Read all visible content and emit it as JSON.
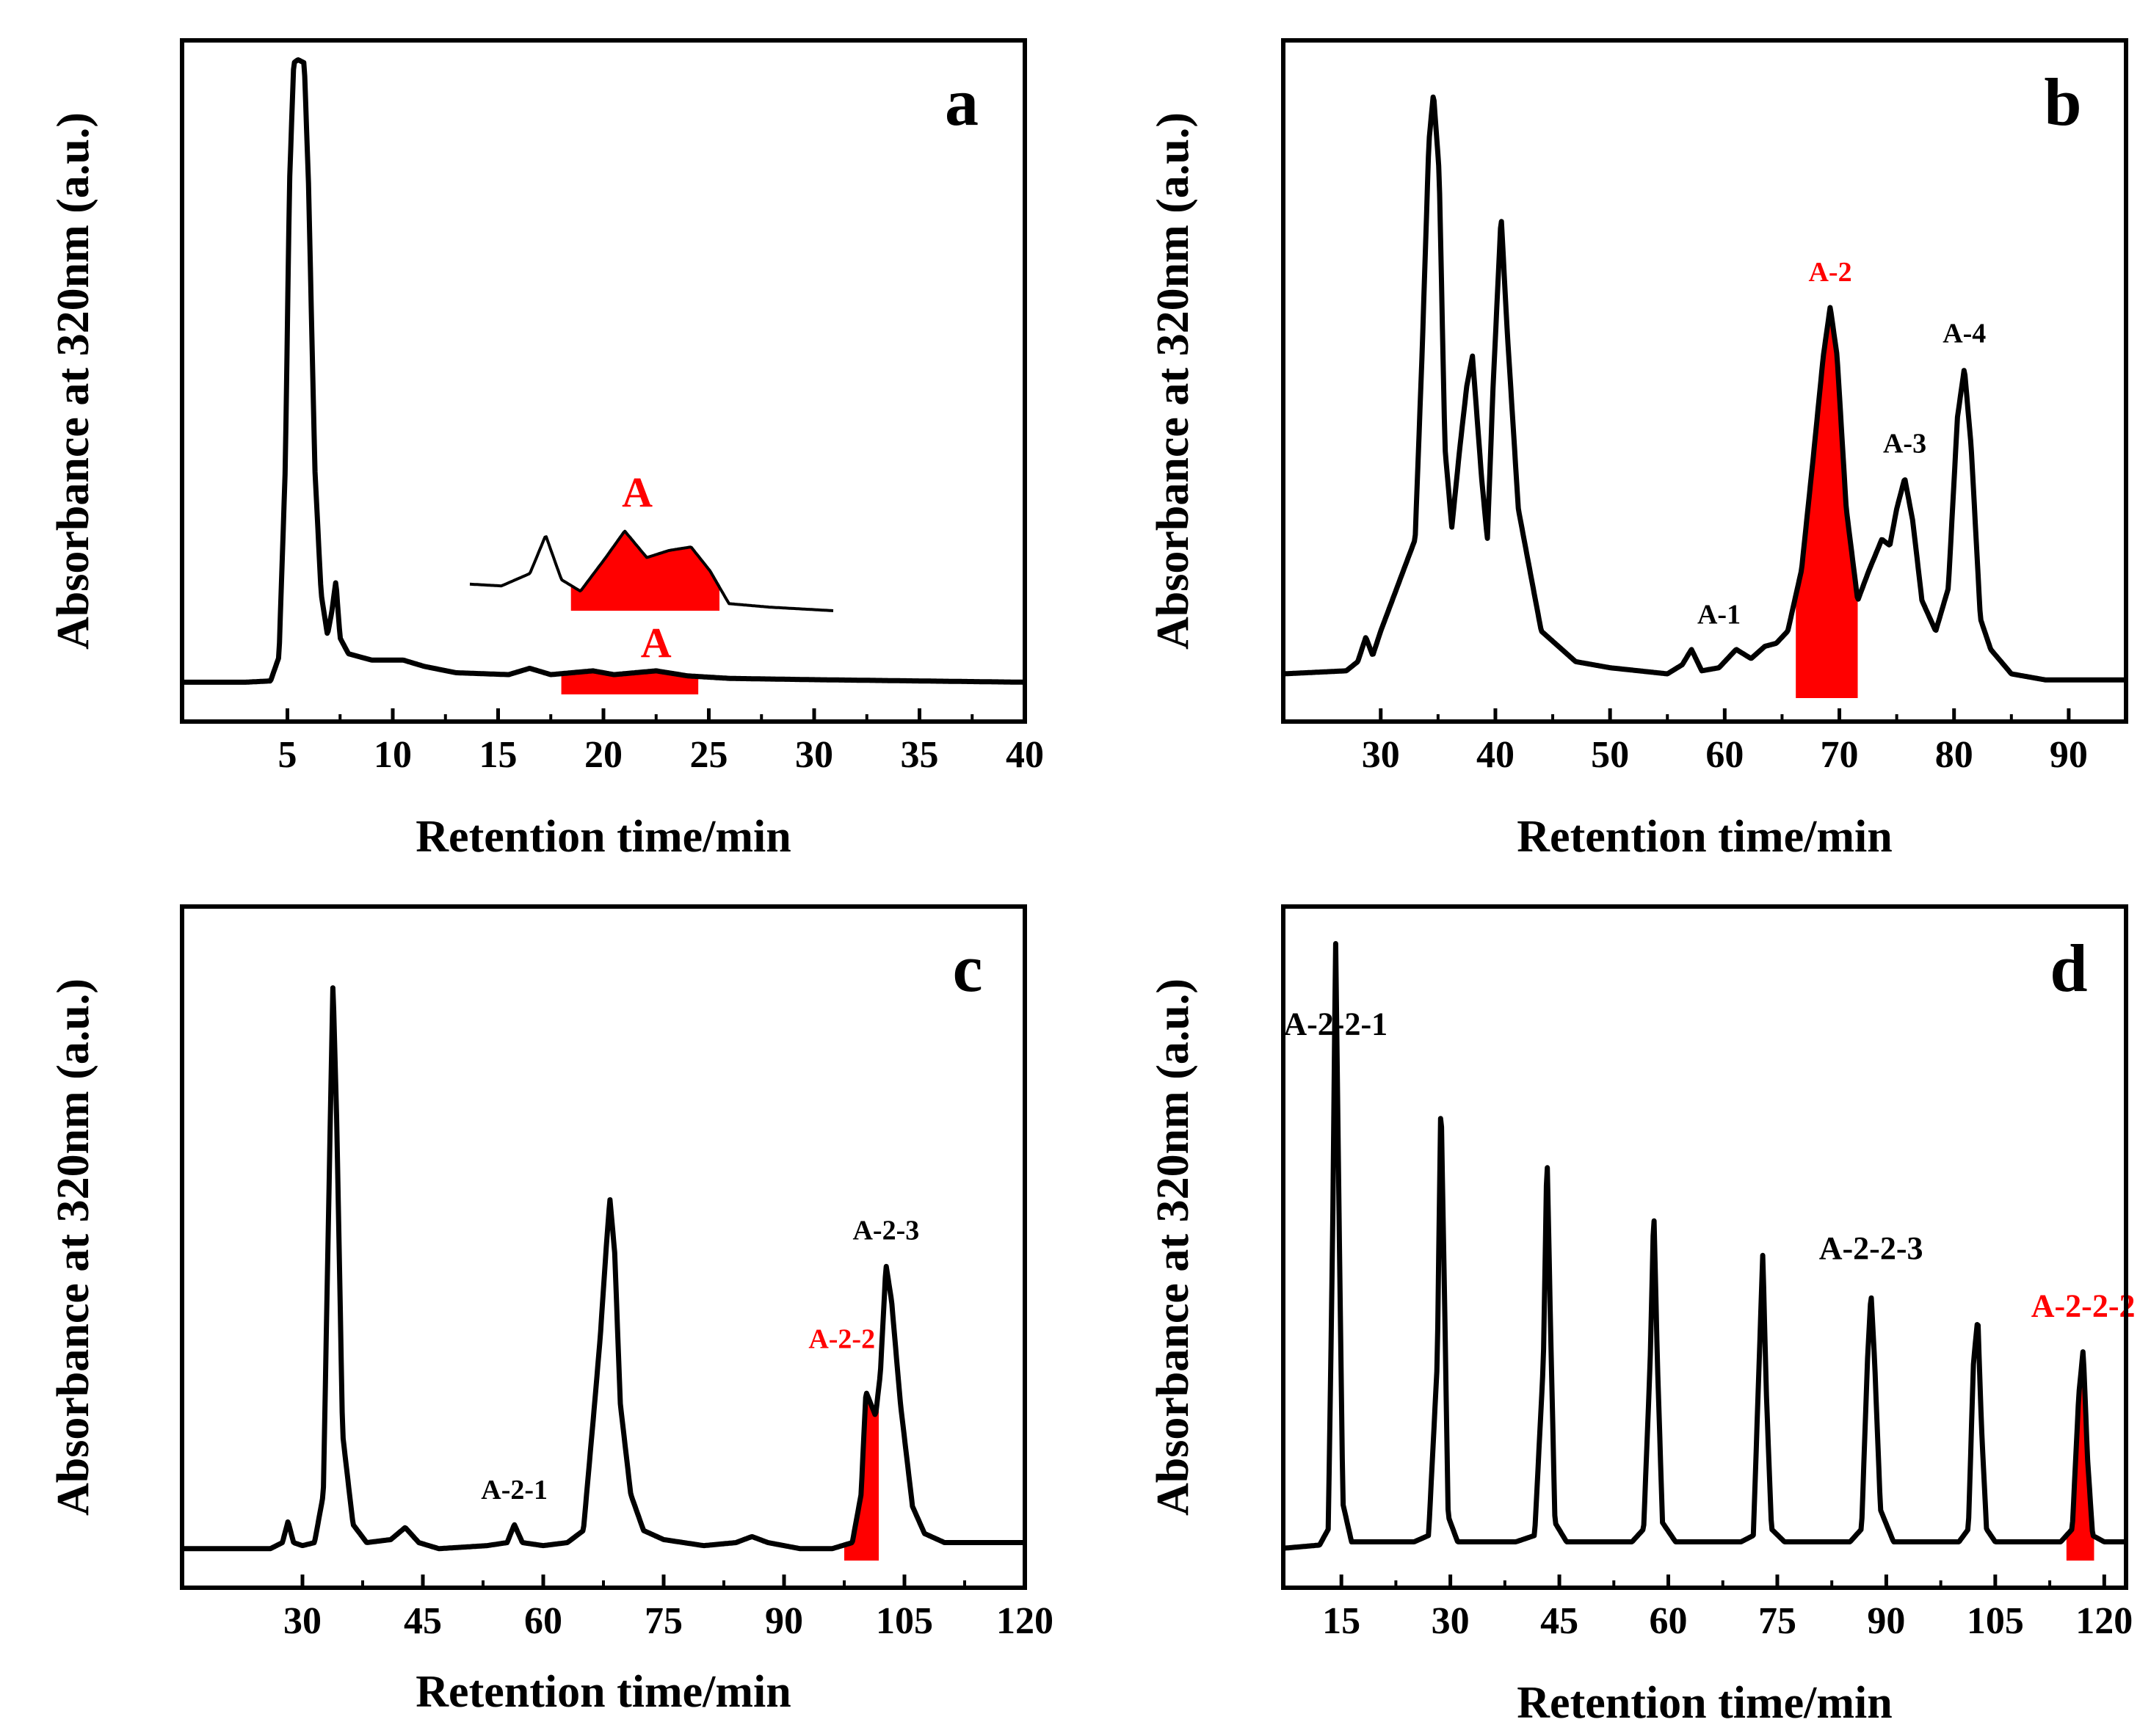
{
  "colors": {
    "trace": "#000000",
    "highlight": "#ff0000",
    "background": "#ffffff"
  },
  "chart_data": [
    {
      "type": "line",
      "panel": "a",
      "xlabel": "Retention time/min",
      "ylabel": "Absorbance at 320nm (a.u.)",
      "xlim": [
        0,
        40
      ],
      "ylim": [
        0,
        1.0
      ],
      "xticks": [
        5,
        10,
        15,
        20,
        25,
        30,
        35,
        40
      ],
      "trace": [
        [
          0,
          0.01
        ],
        [
          3,
          0.01
        ],
        [
          4.2,
          0.012
        ],
        [
          4.6,
          0.05
        ],
        [
          4.9,
          0.35
        ],
        [
          5.1,
          0.8
        ],
        [
          5.3,
          0.99
        ],
        [
          5.5,
          0.995
        ],
        [
          5.8,
          0.99
        ],
        [
          6.0,
          0.8
        ],
        [
          6.3,
          0.35
        ],
        [
          6.6,
          0.15
        ],
        [
          6.9,
          0.085
        ],
        [
          7.1,
          0.12
        ],
        [
          7.3,
          0.17
        ],
        [
          7.5,
          0.08
        ],
        [
          7.9,
          0.055
        ],
        [
          9,
          0.045
        ],
        [
          10.5,
          0.045
        ],
        [
          11.5,
          0.035
        ],
        [
          13,
          0.025
        ],
        [
          15.5,
          0.022
        ],
        [
          16.5,
          0.032
        ],
        [
          17.5,
          0.022
        ],
        [
          19.5,
          0.028
        ],
        [
          20.5,
          0.022
        ],
        [
          22.5,
          0.028
        ],
        [
          24,
          0.02
        ],
        [
          26,
          0.016
        ],
        [
          30,
          0.014
        ],
        [
          40,
          0.01
        ]
      ],
      "highlight_range": [
        18,
        24.5
      ],
      "highlight_label": "A",
      "inset": {
        "trace": [
          [
            0,
            0.3
          ],
          [
            1,
            0.28
          ],
          [
            1.9,
            0.42
          ],
          [
            2.4,
            0.85
          ],
          [
            2.9,
            0.35
          ],
          [
            3.5,
            0.22
          ],
          [
            4.3,
            0.6
          ],
          [
            4.9,
            0.9
          ],
          [
            5.6,
            0.6
          ],
          [
            6.3,
            0.68
          ],
          [
            7.0,
            0.72
          ],
          [
            7.6,
            0.45
          ],
          [
            8.2,
            0.08
          ],
          [
            9.5,
            0.04
          ],
          [
            11.5,
            0.0
          ]
        ],
        "highlight_range": [
          3.2,
          7.9
        ],
        "label": "A"
      }
    },
    {
      "type": "line",
      "panel": "b",
      "xlabel": "Retention time/min",
      "ylabel": "Absorbance at 320nm (a.u.)",
      "xlim": [
        21.5,
        95
      ],
      "ylim": [
        0,
        1.0
      ],
      "xticks": [
        30,
        40,
        50,
        60,
        70,
        80,
        90
      ],
      "trace": [
        [
          21.5,
          0.03
        ],
        [
          27,
          0.035
        ],
        [
          28,
          0.05
        ],
        [
          28.7,
          0.09
        ],
        [
          29.3,
          0.06
        ],
        [
          30,
          0.1
        ],
        [
          31,
          0.15
        ],
        [
          32,
          0.2
        ],
        [
          33,
          0.25
        ],
        [
          33.6,
          0.55
        ],
        [
          34.2,
          0.9
        ],
        [
          34.6,
          0.98
        ],
        [
          35.1,
          0.85
        ],
        [
          35.6,
          0.4
        ],
        [
          36.2,
          0.27
        ],
        [
          36.9,
          0.4
        ],
        [
          37.5,
          0.5
        ],
        [
          38,
          0.55
        ],
        [
          38.8,
          0.35
        ],
        [
          39.3,
          0.25
        ],
        [
          39.8,
          0.5
        ],
        [
          40.5,
          0.78
        ],
        [
          41,
          0.6
        ],
        [
          42,
          0.3
        ],
        [
          44,
          0.1
        ],
        [
          47,
          0.05
        ],
        [
          50,
          0.04
        ],
        [
          55,
          0.03
        ],
        [
          56.3,
          0.045
        ],
        [
          57.1,
          0.07
        ],
        [
          58,
          0.035
        ],
        [
          59.5,
          0.04
        ],
        [
          61,
          0.07
        ],
        [
          62.3,
          0.055
        ],
        [
          63.5,
          0.075
        ],
        [
          64.5,
          0.08
        ],
        [
          65.5,
          0.1
        ],
        [
          66.7,
          0.2
        ],
        [
          67.7,
          0.38
        ],
        [
          68.6,
          0.55
        ],
        [
          69.2,
          0.63
        ],
        [
          69.8,
          0.55
        ],
        [
          70.6,
          0.3
        ],
        [
          71.6,
          0.15
        ],
        [
          72.6,
          0.2
        ],
        [
          73.7,
          0.25
        ],
        [
          74.4,
          0.24
        ],
        [
          75,
          0.3
        ],
        [
          75.7,
          0.35
        ],
        [
          76.4,
          0.28
        ],
        [
          77.2,
          0.15
        ],
        [
          78.4,
          0.1
        ],
        [
          79.5,
          0.17
        ],
        [
          80.3,
          0.45
        ],
        [
          80.9,
          0.53
        ],
        [
          81.5,
          0.4
        ],
        [
          82.3,
          0.12
        ],
        [
          83.2,
          0.07
        ],
        [
          85,
          0.03
        ],
        [
          88,
          0.02
        ],
        [
          95,
          0.02
        ]
      ],
      "highlight_range": [
        66.2,
        71.6
      ],
      "labels": [
        {
          "text": "A-1",
          "x": 59.5,
          "y": 0.1,
          "color": "#000000"
        },
        {
          "text": "A-2",
          "x": 69.2,
          "y": 0.66,
          "color": "#ff0000"
        },
        {
          "text": "A-3",
          "x": 75.7,
          "y": 0.38,
          "color": "#000000"
        },
        {
          "text": "A-4",
          "x": 80.9,
          "y": 0.56,
          "color": "#000000"
        }
      ]
    },
    {
      "type": "line",
      "panel": "c",
      "xlabel": "Retention time/min",
      "ylabel": "Absorbance at 320nm (a.u.)",
      "xlim": [
        15,
        120
      ],
      "ylim": [
        0,
        1.0
      ],
      "xticks": [
        30,
        45,
        60,
        75,
        90,
        105,
        120
      ],
      "trace": [
        [
          15,
          0.01
        ],
        [
          26,
          0.01
        ],
        [
          27.5,
          0.02
        ],
        [
          28.2,
          0.055
        ],
        [
          28.9,
          0.02
        ],
        [
          30,
          0.015
        ],
        [
          31.5,
          0.02
        ],
        [
          32.6,
          0.1
        ],
        [
          33.3,
          0.6
        ],
        [
          33.8,
          0.95
        ],
        [
          34.3,
          0.7
        ],
        [
          35,
          0.2
        ],
        [
          36.3,
          0.05
        ],
        [
          38,
          0.02
        ],
        [
          41,
          0.025
        ],
        [
          42.8,
          0.045
        ],
        [
          44.5,
          0.02
        ],
        [
          47,
          0.01
        ],
        [
          53,
          0.015
        ],
        [
          55.5,
          0.02
        ],
        [
          56.4,
          0.05
        ],
        [
          57.4,
          0.02
        ],
        [
          60,
          0.015
        ],
        [
          63,
          0.02
        ],
        [
          65,
          0.04
        ],
        [
          66.4,
          0.25
        ],
        [
          67.1,
          0.36
        ],
        [
          67.8,
          0.5
        ],
        [
          68.3,
          0.59
        ],
        [
          68.9,
          0.5
        ],
        [
          69.6,
          0.25
        ],
        [
          70.9,
          0.1
        ],
        [
          72.5,
          0.04
        ],
        [
          75,
          0.025
        ],
        [
          80,
          0.015
        ],
        [
          84,
          0.02
        ],
        [
          86,
          0.03
        ],
        [
          88,
          0.02
        ],
        [
          92,
          0.01
        ],
        [
          96,
          0.01
        ],
        [
          98.5,
          0.02
        ],
        [
          99.6,
          0.1
        ],
        [
          100.2,
          0.27
        ],
        [
          100.8,
          0.25
        ],
        [
          101.4,
          0.23
        ],
        [
          102,
          0.3
        ],
        [
          102.7,
          0.48
        ],
        [
          103.4,
          0.42
        ],
        [
          104.5,
          0.25
        ],
        [
          106,
          0.08
        ],
        [
          107.5,
          0.035
        ],
        [
          110,
          0.02
        ],
        [
          115,
          0.02
        ],
        [
          120,
          0.02
        ]
      ],
      "highlight_range": [
        97.5,
        101.8
      ],
      "labels": [
        {
          "text": "A-2-1",
          "x": 56.4,
          "y": 0.08,
          "color": "#000000"
        },
        {
          "text": "A-2-2",
          "x": 97.2,
          "y": 0.33,
          "color": "#ff0000"
        },
        {
          "text": "A-2-3",
          "x": 102.7,
          "y": 0.51,
          "color": "#000000"
        }
      ]
    },
    {
      "type": "line",
      "panel": "d",
      "xlabel": "Retention time/min",
      "ylabel": "Absorbance at 320nm (a.u.)",
      "xlim": [
        7,
        123
      ],
      "ylim": [
        0,
        1.0
      ],
      "xticks": [
        15,
        30,
        45,
        60,
        75,
        90,
        105,
        120
      ],
      "trace": [
        [
          7,
          0.01
        ],
        [
          12,
          0.015
        ],
        [
          13.2,
          0.04
        ],
        [
          13.8,
          0.5
        ],
        [
          14.2,
          0.97
        ],
        [
          14.6,
          0.6
        ],
        [
          15.2,
          0.08
        ],
        [
          16.4,
          0.02
        ],
        [
          20,
          0.02
        ],
        [
          25,
          0.02
        ],
        [
          27,
          0.03
        ],
        [
          28.2,
          0.3
        ],
        [
          28.7,
          0.72
        ],
        [
          29.2,
          0.4
        ],
        [
          29.7,
          0.06
        ],
        [
          31,
          0.02
        ],
        [
          39,
          0.02
        ],
        [
          41.6,
          0.03
        ],
        [
          42.8,
          0.3
        ],
        [
          43.3,
          0.63
        ],
        [
          43.8,
          0.35
        ],
        [
          44.4,
          0.05
        ],
        [
          46,
          0.02
        ],
        [
          55,
          0.02
        ],
        [
          56.6,
          0.04
        ],
        [
          57.5,
          0.3
        ],
        [
          58,
          0.54
        ],
        [
          58.5,
          0.3
        ],
        [
          59.2,
          0.05
        ],
        [
          61,
          0.02
        ],
        [
          70,
          0.02
        ],
        [
          71.7,
          0.03
        ],
        [
          72.5,
          0.3
        ],
        [
          73,
          0.47
        ],
        [
          73.5,
          0.25
        ],
        [
          74.2,
          0.04
        ],
        [
          76,
          0.02
        ],
        [
          85,
          0.02
        ],
        [
          86.6,
          0.04
        ],
        [
          87.4,
          0.3
        ],
        [
          87.9,
          0.41
        ],
        [
          88.4,
          0.3
        ],
        [
          89.2,
          0.07
        ],
        [
          91,
          0.02
        ],
        [
          100,
          0.02
        ],
        [
          101.3,
          0.04
        ],
        [
          102,
          0.3
        ],
        [
          102.6,
          0.37
        ],
        [
          103.1,
          0.2
        ],
        [
          103.8,
          0.04
        ],
        [
          105,
          0.02
        ],
        [
          114,
          0.02
        ],
        [
          115.6,
          0.04
        ],
        [
          116.5,
          0.25
        ],
        [
          117.1,
          0.32
        ],
        [
          117.7,
          0.15
        ],
        [
          118.4,
          0.03
        ],
        [
          120,
          0.02
        ],
        [
          123,
          0.02
        ]
      ],
      "highlight_range": [
        114.8,
        118.6
      ],
      "labels": [
        {
          "text": "A-2-2-1",
          "x": 14.2,
          "y": 0.8,
          "color": "#000000"
        },
        {
          "text": "A-2-2-3",
          "x": 87.9,
          "y": 0.45,
          "color": "#000000"
        },
        {
          "text": "A-2-2-2",
          "x": 117.1,
          "y": 0.36,
          "color": "#ff0000"
        }
      ]
    }
  ],
  "panels": [
    {
      "letter": "a",
      "xlabel": "Retention time/min",
      "ylabel": "Absorbance at 320nm (a.u.)"
    },
    {
      "letter": "b",
      "xlabel": "Retention time/min",
      "ylabel": "Absorbance at 320nm (a.u.)"
    },
    {
      "letter": "c",
      "xlabel": "Retention time/min",
      "ylabel": "Absorbance at 320nm (a.u.)"
    },
    {
      "letter": "d",
      "xlabel": "Retention time/min",
      "ylabel": "Absorbance at 320nm (a.u.)"
    }
  ]
}
